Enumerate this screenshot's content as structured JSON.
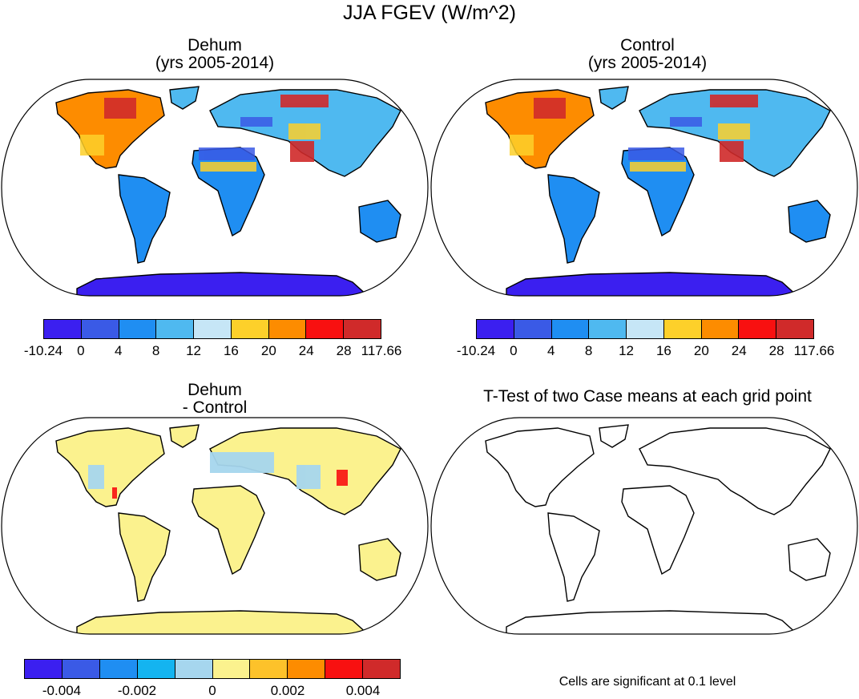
{
  "title": "JJA FGEV (W/m^2)",
  "panels": [
    {
      "title_line1": "Dehum",
      "title_line2": "(yrs 2005-2014)"
    },
    {
      "title_line1": "Control",
      "title_line2": "(yrs 2005-2014)"
    },
    {
      "title_line1": "Dehum",
      "title_line2": "- Control"
    },
    {
      "title_line1": "T-Test of two Case means at each grid point",
      "title_line2": ""
    }
  ],
  "colorbar_main": {
    "colors": [
      "#3b1ff0",
      "#3a5ae6",
      "#1f8ef2",
      "#4fb9f0",
      "#c6e6f6",
      "#fdd02a",
      "#fd8c00",
      "#f81010",
      "#d02a2a"
    ],
    "labels": [
      "-10.24",
      "0",
      "4",
      "8",
      "12",
      "16",
      "20",
      "24",
      "28",
      "117.66"
    ]
  },
  "colorbar_diff": {
    "colors": [
      "#3b1ff0",
      "#3a5ae6",
      "#1f8ef2",
      "#14b4f0",
      "#a6d6ee",
      "#fbf28e",
      "#fdc22a",
      "#fd8c00",
      "#f81010",
      "#d02a2a"
    ],
    "labels": [
      "-0.004",
      "-0.002",
      "0",
      "0.002",
      "0.004"
    ]
  },
  "significance_note": "Cells are significant at 0.1 level",
  "colors": {
    "ocean": "#ffffff",
    "coastline": "#000000",
    "antarctica": "#3b1ff0",
    "diff_land": "#fbf28e",
    "diff_cool": "#a6d6ee"
  }
}
